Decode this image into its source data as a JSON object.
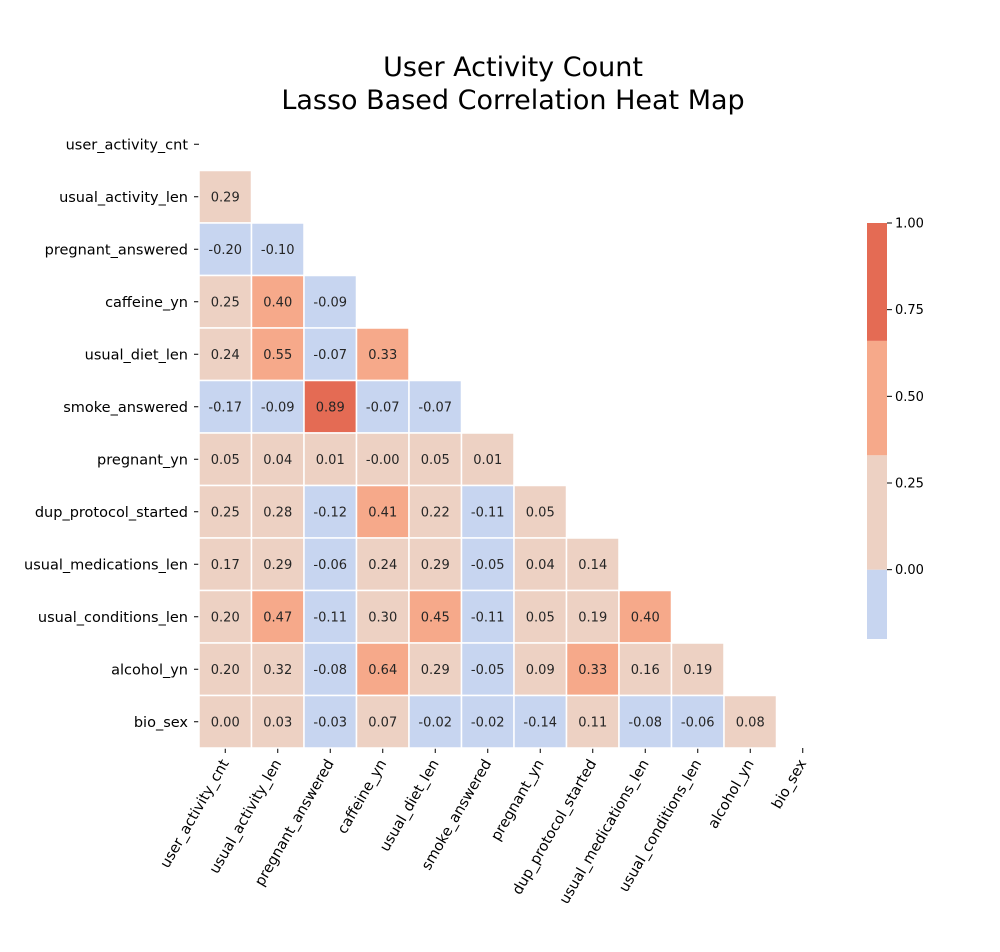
{
  "chart_data": {
    "type": "heatmap",
    "title": [
      "User Activity Count",
      "Lasso Based Correlation Heat Map"
    ],
    "variables": [
      "user_activity_cnt",
      "usual_activity_len",
      "pregnant_answered",
      "caffeine_yn",
      "usual_diet_len",
      "smoke_answered",
      "pregnant_yn",
      "dup_protocol_started",
      "usual_medications_len",
      "usual_conditions_len",
      "alcohol_yn",
      "bio_sex"
    ],
    "mask": "upper-triangle-including-diagonal",
    "rows": [
      [],
      [
        "0.29"
      ],
      [
        "-0.20",
        "-0.10"
      ],
      [
        "0.25",
        "0.40",
        "-0.09"
      ],
      [
        "0.24",
        "0.55",
        "-0.07",
        "0.33"
      ],
      [
        "-0.17",
        "-0.09",
        "0.89",
        "-0.07",
        "-0.07"
      ],
      [
        "0.05",
        "0.04",
        "0.01",
        "-0.00",
        "0.05",
        "0.01"
      ],
      [
        "0.25",
        "0.28",
        "-0.12",
        "0.41",
        "0.22",
        "-0.11",
        "0.05"
      ],
      [
        "0.17",
        "0.29",
        "-0.06",
        "0.24",
        "0.29",
        "-0.05",
        "0.04",
        "0.14"
      ],
      [
        "0.20",
        "0.47",
        "-0.11",
        "0.30",
        "0.45",
        "-0.11",
        "0.05",
        "0.19",
        "0.40"
      ],
      [
        "0.20",
        "0.32",
        "-0.08",
        "0.64",
        "0.29",
        "-0.05",
        "0.09",
        "0.33",
        "0.16",
        "0.19"
      ],
      [
        "0.00",
        "0.03",
        "-0.03",
        "0.07",
        "-0.02",
        "-0.02",
        "-0.14",
        "0.11",
        "-0.08",
        "-0.06",
        "0.08"
      ]
    ],
    "colorbar": {
      "range": [
        -0.2,
        1.0
      ],
      "ticks": [
        "0.00",
        "0.25",
        "0.50",
        "0.75",
        "1.00"
      ],
      "bins": [
        {
          "from": -0.2,
          "to": 0.0,
          "color": "#c7d5f0"
        },
        {
          "from": 0.0,
          "to": 0.33,
          "color": "#edd1c3"
        },
        {
          "from": 0.33,
          "to": 0.66,
          "color": "#f6a98a"
        },
        {
          "from": 0.66,
          "to": 1.0,
          "color": "#e46b54"
        }
      ]
    },
    "grid": false
  }
}
